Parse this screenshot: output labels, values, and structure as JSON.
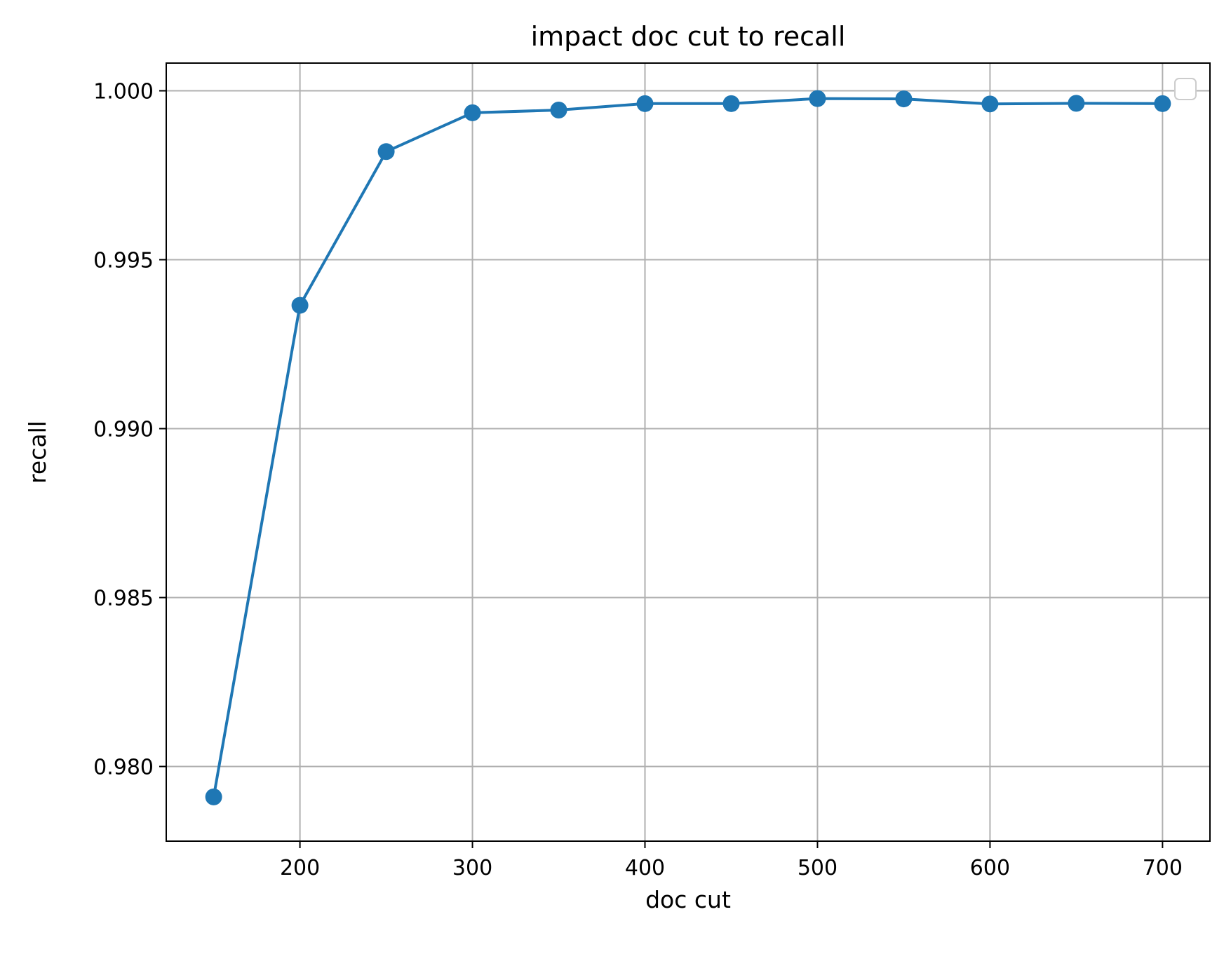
{
  "chart_data": {
    "type": "line",
    "title": "impact doc cut to recall",
    "xlabel": "doc cut",
    "ylabel": "recall",
    "xlim": [
      122.5,
      727.5
    ],
    "ylim": [
      0.97779,
      1.00082
    ],
    "xticks": [
      200,
      300,
      400,
      500,
      600,
      700
    ],
    "yticks": [
      0.98,
      0.985,
      0.99,
      0.995,
      1.0
    ],
    "xtick_labels": [
      "200",
      "300",
      "400",
      "500",
      "600",
      "700"
    ],
    "ytick_labels": [
      "0.980",
      "0.985",
      "0.990",
      "0.995",
      "1.000"
    ],
    "grid": true,
    "legend": "top-right (empty)",
    "series": [
      {
        "color": "#1f77b4",
        "marker": "circle",
        "x": [
          150,
          200,
          250,
          300,
          350,
          400,
          450,
          500,
          550,
          600,
          650,
          700
        ],
        "y": [
          0.9791,
          0.99365,
          0.9982,
          0.99935,
          0.99943,
          0.99962,
          0.99962,
          0.99977,
          0.99976,
          0.99961,
          0.99963,
          0.99962
        ]
      }
    ]
  }
}
